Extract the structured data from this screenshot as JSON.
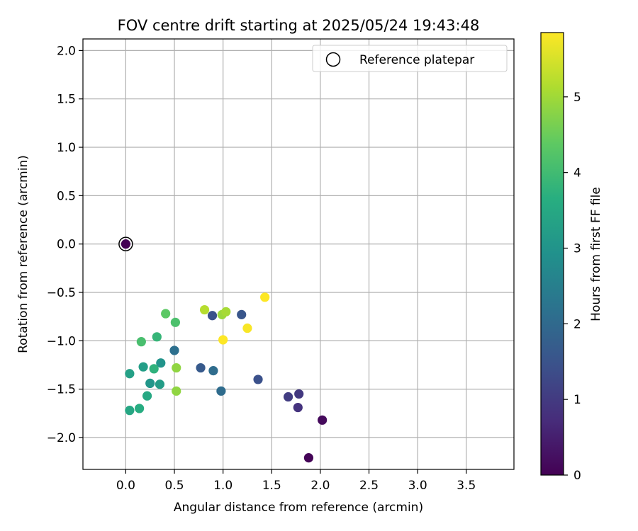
{
  "chart_data": {
    "type": "scatter",
    "title": "FOV centre drift starting at 2025/05/24 19:43:48",
    "xlabel": "Angular distance from reference (arcmin)",
    "ylabel": "Rotation from reference (arcmin)",
    "xlim": [
      -0.44,
      3.99
    ],
    "ylim": [
      -2.33,
      2.12
    ],
    "xticks": [
      0.0,
      0.5,
      1.0,
      1.5,
      2.0,
      2.5,
      3.0,
      3.5
    ],
    "xtick_labels": [
      "0.0",
      "0.5",
      "1.0",
      "1.5",
      "2.0",
      "2.5",
      "3.0",
      "3.5"
    ],
    "yticks": [
      -2.0,
      -1.5,
      -1.0,
      -0.5,
      0.0,
      0.5,
      1.0,
      1.5,
      2.0
    ],
    "ytick_labels": [
      "−2.0",
      "−1.5",
      "−1.0",
      "−0.5",
      "0.0",
      "0.5",
      "1.0",
      "1.5",
      "2.0"
    ],
    "grid": true,
    "legend": {
      "position": "top-right",
      "entries": [
        "Reference platepar"
      ]
    },
    "reference_point": {
      "x": 0.0,
      "y": 0.0
    },
    "colorbar": {
      "label": "Hours from first FF file",
      "colormap": "viridis",
      "range": [
        0,
        5.85
      ],
      "ticks": [
        0,
        1,
        2,
        3,
        4,
        5
      ],
      "tick_labels": [
        "0",
        "1",
        "2",
        "3",
        "4",
        "5"
      ]
    },
    "points": [
      {
        "x": 0.0,
        "y": 0.0,
        "c": 0.0
      },
      {
        "x": 1.88,
        "y": -2.21,
        "c": 0.05
      },
      {
        "x": 2.02,
        "y": -1.82,
        "c": 0.15
      },
      {
        "x": 1.77,
        "y": -1.69,
        "c": 0.85
      },
      {
        "x": 1.78,
        "y": -1.55,
        "c": 0.95
      },
      {
        "x": 1.67,
        "y": -1.58,
        "c": 1.05
      },
      {
        "x": 1.36,
        "y": -1.4,
        "c": 1.45
      },
      {
        "x": 1.19,
        "y": -0.73,
        "c": 1.55
      },
      {
        "x": 0.89,
        "y": -0.74,
        "c": 1.45
      },
      {
        "x": 0.77,
        "y": -1.28,
        "c": 1.65
      },
      {
        "x": 0.98,
        "y": -1.52,
        "c": 2.05
      },
      {
        "x": 0.9,
        "y": -1.31,
        "c": 2.05
      },
      {
        "x": 0.5,
        "y": -1.1,
        "c": 2.15
      },
      {
        "x": 0.36,
        "y": -1.23,
        "c": 3.0
      },
      {
        "x": 0.25,
        "y": -1.44,
        "c": 3.05
      },
      {
        "x": 0.35,
        "y": -1.45,
        "c": 3.2
      },
      {
        "x": 0.18,
        "y": -1.27,
        "c": 3.25
      },
      {
        "x": 0.04,
        "y": -1.34,
        "c": 3.3
      },
      {
        "x": 0.04,
        "y": -1.72,
        "c": 3.45
      },
      {
        "x": 0.22,
        "y": -1.57,
        "c": 3.5
      },
      {
        "x": 0.14,
        "y": -1.7,
        "c": 3.6
      },
      {
        "x": 0.29,
        "y": -1.29,
        "c": 3.75
      },
      {
        "x": 0.32,
        "y": -0.96,
        "c": 3.85
      },
      {
        "x": 0.51,
        "y": -0.81,
        "c": 4.15
      },
      {
        "x": 0.16,
        "y": -1.01,
        "c": 4.1
      },
      {
        "x": 0.41,
        "y": -0.72,
        "c": 4.35
      },
      {
        "x": 0.52,
        "y": -1.52,
        "c": 4.85
      },
      {
        "x": 0.52,
        "y": -1.28,
        "c": 4.85
      },
      {
        "x": 0.81,
        "y": -0.68,
        "c": 5.2
      },
      {
        "x": 0.99,
        "y": -0.73,
        "c": 4.95
      },
      {
        "x": 1.03,
        "y": -0.7,
        "c": 5.05
      },
      {
        "x": 1.0,
        "y": -0.99,
        "c": 5.85
      },
      {
        "x": 1.25,
        "y": -0.87,
        "c": 5.8
      },
      {
        "x": 1.43,
        "y": -0.55,
        "c": 5.85
      }
    ]
  }
}
